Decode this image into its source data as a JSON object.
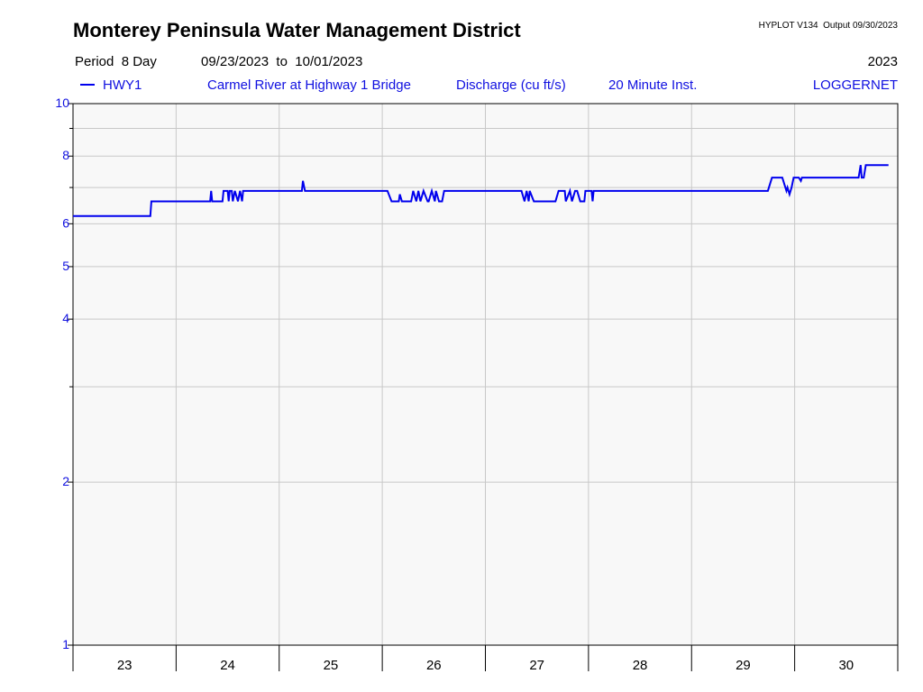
{
  "chart_data": {
    "type": "line",
    "title": "Monterey Peninsula Water Management District",
    "program": "HYPLOT V134  Output 09/30/2023",
    "period": "Period  8 Day",
    "date_range": "09/23/2023  to  10/01/2023",
    "year": "2023",
    "station": "Carmel River at Highway 1 Bridge",
    "parameter": "Discharge (cu ft/s)",
    "interval": "20 Minute Inst.",
    "source": "LOGGERNET",
    "log_scale": true,
    "grid": true,
    "xlim": [
      23,
      31
    ],
    "xticks": [
      23,
      24,
      25,
      26,
      27,
      28,
      29,
      30,
      31
    ],
    "day_labels": [
      23,
      24,
      25,
      26,
      27,
      28,
      29,
      30
    ],
    "ylim": [
      1,
      10
    ],
    "yticks": [
      1,
      2,
      4,
      5,
      6,
      8,
      10
    ],
    "minor_yticks": [
      3,
      7,
      9
    ],
    "series": [
      {
        "name": "HWY1",
        "color": "#0000ee",
        "x": [
          23.0,
          23.75,
          23.76,
          24.33,
          24.34,
          24.35,
          24.45,
          24.46,
          24.5,
          24.51,
          24.52,
          24.54,
          24.55,
          24.57,
          24.6,
          24.62,
          24.64,
          24.65,
          25.22,
          25.23,
          25.25,
          26.05,
          26.09,
          26.16,
          26.17,
          26.19,
          26.28,
          26.3,
          26.33,
          26.35,
          26.37,
          26.4,
          26.44,
          26.45,
          26.48,
          26.51,
          26.52,
          26.55,
          26.58,
          26.6,
          27.35,
          27.38,
          27.4,
          27.42,
          27.43,
          27.47,
          27.68,
          27.71,
          27.77,
          27.78,
          27.82,
          27.84,
          27.87,
          27.89,
          27.92,
          27.96,
          27.97,
          28.03,
          28.04,
          28.05,
          29.74,
          29.78,
          29.88,
          29.92,
          29.93,
          29.95,
          29.97,
          29.99,
          30.04,
          30.06,
          30.07,
          30.62,
          30.64,
          30.65,
          30.67,
          30.69,
          30.91
        ],
        "values": [
          6.2,
          6.2,
          6.6,
          6.6,
          6.9,
          6.6,
          6.6,
          6.9,
          6.9,
          6.6,
          6.9,
          6.9,
          6.6,
          6.9,
          6.6,
          6.9,
          6.6,
          6.9,
          6.9,
          7.2,
          6.9,
          6.9,
          6.6,
          6.6,
          6.8,
          6.6,
          6.6,
          6.9,
          6.6,
          6.9,
          6.6,
          6.9,
          6.6,
          6.6,
          6.9,
          6.6,
          6.9,
          6.6,
          6.6,
          6.9,
          6.9,
          6.6,
          6.9,
          6.6,
          6.9,
          6.6,
          6.6,
          6.9,
          6.9,
          6.6,
          6.9,
          6.6,
          6.9,
          6.9,
          6.6,
          6.6,
          6.9,
          6.9,
          6.6,
          6.9,
          6.9,
          7.3,
          7.3,
          6.9,
          7.0,
          6.8,
          7.0,
          7.3,
          7.3,
          7.2,
          7.3,
          7.3,
          7.7,
          7.3,
          7.3,
          7.7,
          7.7
        ]
      }
    ]
  }
}
